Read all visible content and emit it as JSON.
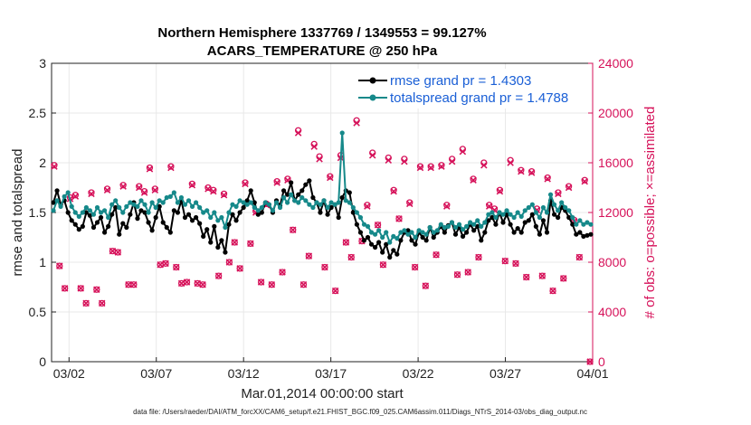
{
  "chart_data": {
    "type": "line",
    "title_line1": "Northern Hemisphere 1337769 / 1349553 = 99.127%",
    "title_line2": "ACARS_TEMPERATURE @ 250 hPa",
    "xlabel": "Mar.01,2014 00:00:00 start",
    "ylabel_left": "rmse and totalspread",
    "ylabel_right": "# of obs: o=possible; ×=assimilated",
    "footnote": "data file: /Users/raeder/DAI/ATM_forcXX/CAM6_setup/f.e21.FHIST_BGC.f09_025.CAM6assim.011/Diags_NTrS_2014-03/obs_diag_output.nc",
    "xlim": [
      0,
      31
    ],
    "ylim_left": [
      0,
      3
    ],
    "ylim_right": [
      0,
      24000
    ],
    "x_ticks": [
      1,
      6,
      11,
      16,
      21,
      26,
      31
    ],
    "x_tick_labels": [
      "03/02",
      "03/07",
      "03/12",
      "03/17",
      "03/22",
      "03/27",
      "04/01"
    ],
    "y_ticks_left": [
      0,
      0.5,
      1,
      1.5,
      2,
      2.5,
      3
    ],
    "y_tick_labels_left": [
      "0",
      "0.5",
      "1",
      "1.5",
      "2",
      "2.5",
      "3"
    ],
    "y_ticks_right": [
      0,
      4000,
      8000,
      12000,
      16000,
      20000,
      24000
    ],
    "y_tick_labels_right": [
      "0",
      "4000",
      "8000",
      "12000",
      "16000",
      "20000",
      "24000"
    ],
    "grid": true,
    "legend_position": "top-right",
    "colors": {
      "rmse": "#000000",
      "totalspread": "#16898a",
      "obs": "#d6125a",
      "legend_text": "#1a5fd6",
      "grid": "#e8e8e8"
    },
    "series": [
      {
        "name": "rmse grand pr = 1.4303",
        "values": [
          1.6,
          1.72,
          1.58,
          1.62,
          1.5,
          1.42,
          1.38,
          1.33,
          1.36,
          1.5,
          1.47,
          1.35,
          1.4,
          1.45,
          1.3,
          1.36,
          1.48,
          1.55,
          1.28,
          1.39,
          1.35,
          1.48,
          1.6,
          1.44,
          1.52,
          1.5,
          1.4,
          1.32,
          1.45,
          1.56,
          1.4,
          1.35,
          1.3,
          1.52,
          1.5,
          1.62,
          1.45,
          1.48,
          1.42,
          1.45,
          1.39,
          1.26,
          1.33,
          1.2,
          1.36,
          1.15,
          1.22,
          1.1,
          1.38,
          1.48,
          1.42,
          1.5,
          1.55,
          1.62,
          1.72,
          1.6,
          1.48,
          1.5,
          1.6,
          1.58,
          1.5,
          1.62,
          1.57,
          1.72,
          1.68,
          1.8,
          1.62,
          1.68,
          1.72,
          1.78,
          1.82,
          1.65,
          1.6,
          1.5,
          1.62,
          1.48,
          1.55,
          1.58,
          1.45,
          1.65,
          1.72,
          1.7,
          1.5,
          1.38,
          1.3,
          1.22,
          1.25,
          1.18,
          1.15,
          1.2,
          1.1,
          1.18,
          1.05,
          1.12,
          1.08,
          1.22,
          1.3,
          1.32,
          1.22,
          1.18,
          1.3,
          1.25,
          1.22,
          1.35,
          1.25,
          1.3,
          1.36,
          1.3,
          1.37,
          1.4,
          1.28,
          1.35,
          1.26,
          1.3,
          1.38,
          1.32,
          1.36,
          1.22,
          1.3,
          1.42,
          1.45,
          1.38,
          1.5,
          1.4,
          1.48,
          1.38,
          1.3,
          1.34,
          1.3,
          1.4,
          1.42,
          1.48,
          1.36,
          1.28,
          1.42,
          1.3,
          1.62,
          1.48,
          1.45,
          1.55,
          1.52,
          1.45,
          1.38,
          1.28,
          1.3,
          1.26,
          1.27,
          1.28
        ],
        "color": "#000000"
      },
      {
        "name": "totalspread grand pr = 1.4788",
        "values": [
          1.52,
          1.62,
          1.56,
          1.66,
          1.7,
          1.56,
          1.5,
          1.46,
          1.5,
          1.55,
          1.52,
          1.48,
          1.55,
          1.5,
          1.52,
          1.45,
          1.58,
          1.62,
          1.55,
          1.5,
          1.56,
          1.6,
          1.58,
          1.56,
          1.62,
          1.58,
          1.5,
          1.6,
          1.55,
          1.62,
          1.6,
          1.65,
          1.66,
          1.7,
          1.6,
          1.65,
          1.58,
          1.62,
          1.56,
          1.6,
          1.55,
          1.5,
          1.52,
          1.45,
          1.5,
          1.42,
          1.45,
          1.35,
          1.5,
          1.58,
          1.56,
          1.62,
          1.6,
          1.58,
          1.6,
          1.55,
          1.52,
          1.55,
          1.6,
          1.58,
          1.52,
          1.6,
          1.55,
          1.65,
          1.6,
          1.68,
          1.62,
          1.6,
          1.65,
          1.62,
          1.58,
          1.55,
          1.6,
          1.58,
          1.62,
          1.55,
          1.6,
          1.58,
          1.6,
          2.3,
          1.62,
          1.6,
          1.55,
          1.5,
          1.45,
          1.38,
          1.36,
          1.3,
          1.28,
          1.32,
          1.25,
          1.3,
          1.2,
          1.26,
          1.24,
          1.3,
          1.32,
          1.28,
          1.3,
          1.25,
          1.32,
          1.3,
          1.28,
          1.35,
          1.3,
          1.32,
          1.38,
          1.35,
          1.36,
          1.4,
          1.35,
          1.38,
          1.33,
          1.36,
          1.4,
          1.38,
          1.42,
          1.36,
          1.4,
          1.48,
          1.5,
          1.45,
          1.5,
          1.48,
          1.52,
          1.48,
          1.45,
          1.5,
          1.46,
          1.52,
          1.55,
          1.58,
          1.5,
          1.45,
          1.55,
          1.5,
          1.68,
          1.58,
          1.52,
          1.6,
          1.55,
          1.52,
          1.45,
          1.38,
          1.42,
          1.38,
          1.4,
          1.38
        ],
        "color": "#16898a"
      },
      {
        "name": "obs possible (o)",
        "values": [
          15800,
          7700,
          5900,
          13200,
          13400,
          5900,
          4700,
          13600,
          5800,
          4700,
          13900,
          8900,
          8800,
          14200,
          6200,
          6200,
          14100,
          13700,
          15600,
          13900,
          7800,
          7900,
          15700,
          7600,
          6300,
          6400,
          14300,
          6300,
          6200,
          14000,
          13800,
          6900,
          13500,
          8000,
          9600,
          7500,
          14400,
          9500,
          12100,
          6400,
          12700,
          6200,
          14500,
          7200,
          14700,
          10600,
          18600,
          6200,
          8500,
          17500,
          16500,
          7600,
          14900,
          5700,
          16600,
          9600,
          8400,
          19400,
          9700,
          12600,
          16800,
          11000,
          7800,
          16400,
          13800,
          11500,
          16300,
          12800,
          7600,
          15700,
          6100,
          15700,
          8600,
          15800,
          12600,
          16300,
          7000,
          17100,
          7200,
          14700,
          8400,
          16000,
          12600,
          12300,
          13800,
          8100,
          16200,
          7900,
          15400,
          6800,
          15300,
          12300,
          6900,
          14800,
          5700,
          13600,
          6700,
          14100,
          11400,
          8400,
          14600,
          0
        ],
        "color": "#d6125a"
      },
      {
        "name": "obs assimilated (×)",
        "values": [
          15700,
          7700,
          5900,
          13100,
          13300,
          5900,
          4700,
          13500,
          5800,
          4700,
          13800,
          8900,
          8800,
          14100,
          6200,
          6200,
          14000,
          13600,
          15500,
          13800,
          7800,
          7900,
          15600,
          7600,
          6300,
          6400,
          14200,
          6300,
          6200,
          13900,
          13700,
          6900,
          13400,
          8000,
          9600,
          7500,
          14300,
          9500,
          12000,
          6400,
          12600,
          6200,
          14400,
          7200,
          14600,
          10600,
          18400,
          6200,
          8500,
          17300,
          16300,
          7600,
          14800,
          5700,
          16400,
          9600,
          8400,
          19200,
          9700,
          12500,
          16600,
          11000,
          7800,
          16200,
          13700,
          11500,
          16100,
          12700,
          7600,
          15600,
          6100,
          15600,
          8600,
          15700,
          12500,
          16100,
          7000,
          16900,
          7200,
          14600,
          8400,
          15800,
          12500,
          12200,
          13700,
          8100,
          16000,
          7900,
          15300,
          6800,
          15200,
          12200,
          6900,
          14700,
          5700,
          13500,
          6700,
          14000,
          11300,
          8400,
          14500,
          0
        ],
        "color": "#d6125a"
      }
    ]
  }
}
